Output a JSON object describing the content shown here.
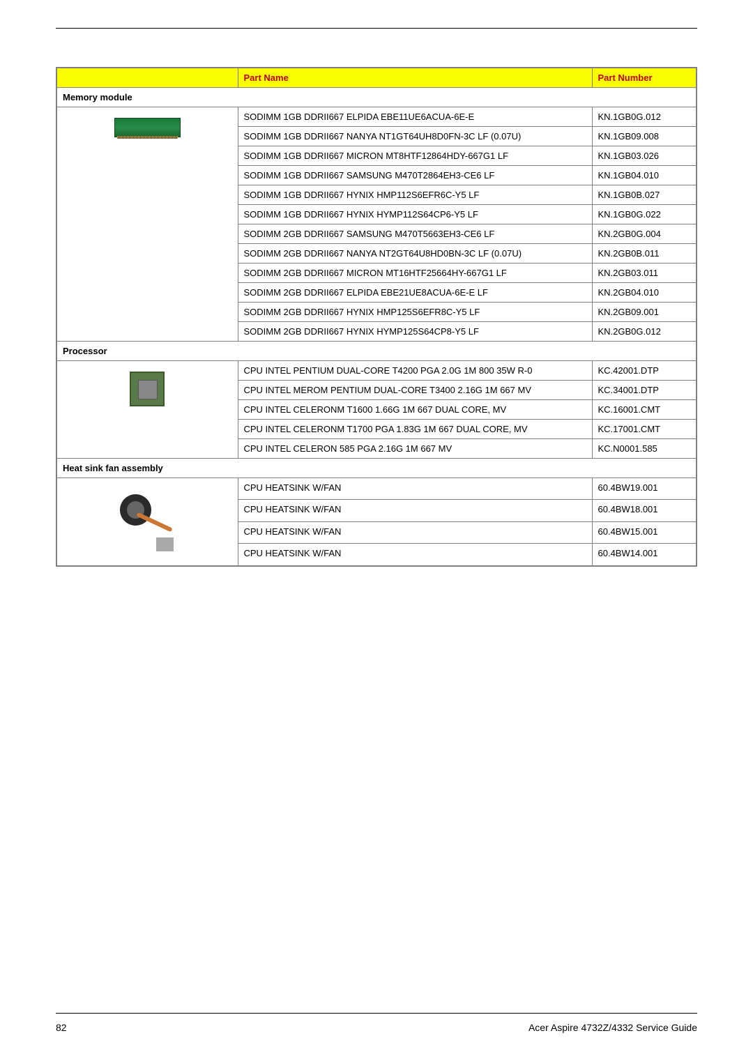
{
  "headers": {
    "image": "",
    "partName": "Part Name",
    "partNumber": "Part Number"
  },
  "sections": {
    "memory": "Memory module",
    "processor": "Processor",
    "heatsink": "Heat sink fan assembly"
  },
  "memoryRows": [
    {
      "name": "SODIMM 1GB DDRII667 ELPIDA EBE11UE6ACUA-6E-E",
      "number": "KN.1GB0G.012"
    },
    {
      "name": "SODIMM 1GB DDRII667 NANYA NT1GT64UH8D0FN-3C LF (0.07U)",
      "number": "KN.1GB09.008"
    },
    {
      "name": "SODIMM 1GB DDRII667 MICRON MT8HTF12864HDY-667G1 LF",
      "number": "KN.1GB03.026"
    },
    {
      "name": "SODIMM 1GB DDRII667 SAMSUNG M470T2864EH3-CE6 LF",
      "number": "KN.1GB04.010"
    },
    {
      "name": "SODIMM 1GB DDRII667 HYNIX HMP112S6EFR6C-Y5 LF",
      "number": "KN.1GB0B.027"
    },
    {
      "name": "SODIMM 1GB DDRII667 HYNIX HYMP112S64CP6-Y5 LF",
      "number": "KN.1GB0G.022"
    },
    {
      "name": "SODIMM 2GB DDRII667 SAMSUNG M470T5663EH3-CE6 LF",
      "number": "KN.2GB0G.004"
    },
    {
      "name": "SODIMM 2GB DDRII667 NANYA NT2GT64U8HD0BN-3C LF (0.07U)",
      "number": "KN.2GB0B.011"
    },
    {
      "name": "SODIMM 2GB DDRII667 MICRON MT16HTF25664HY-667G1 LF",
      "number": "KN.2GB03.011"
    },
    {
      "name": "SODIMM 2GB DDRII667 ELPIDA EBE21UE8ACUA-6E-E LF",
      "number": "KN.2GB04.010"
    },
    {
      "name": "SODIMM 2GB DDRII667 HYNIX HMP125S6EFR8C-Y5 LF",
      "number": "KN.2GB09.001"
    },
    {
      "name": "SODIMM 2GB DDRII667 HYNIX HYMP125S64CP8-Y5 LF",
      "number": "KN.2GB0G.012"
    }
  ],
  "processorRows": [
    {
      "name": "CPU INTEL PENTIUM DUAL-CORE T4200 PGA 2.0G 1M 800 35W R-0",
      "number": "KC.42001.DTP"
    },
    {
      "name": "CPU INTEL MEROM PENTIUM DUAL-CORE T3400 2.16G 1M 667 MV",
      "number": "KC.34001.DTP"
    },
    {
      "name": "CPU INTEL CELERONM T1600 1.66G 1M 667 DUAL CORE, MV",
      "number": "KC.16001.CMT"
    },
    {
      "name": "CPU INTEL CELERONM T1700 PGA 1.83G 1M 667 DUAL CORE, MV",
      "number": "KC.17001.CMT"
    },
    {
      "name": "CPU INTEL CELERON 585 PGA 2.16G 1M 667 MV",
      "number": "KC.N0001.585"
    }
  ],
  "heatsinkRows": [
    {
      "name": "CPU HEATSINK W/FAN",
      "number": "60.4BW19.001"
    },
    {
      "name": "CPU HEATSINK W/FAN",
      "number": "60.4BW18.001"
    },
    {
      "name": "CPU HEATSINK W/FAN",
      "number": "60.4BW15.001"
    },
    {
      "name": "CPU HEATSINK W/FAN",
      "number": "60.4BW14.001"
    }
  ],
  "footer": {
    "pageNumber": "82",
    "guideTitle": "Acer Aspire 4732Z/4332 Service Guide"
  }
}
